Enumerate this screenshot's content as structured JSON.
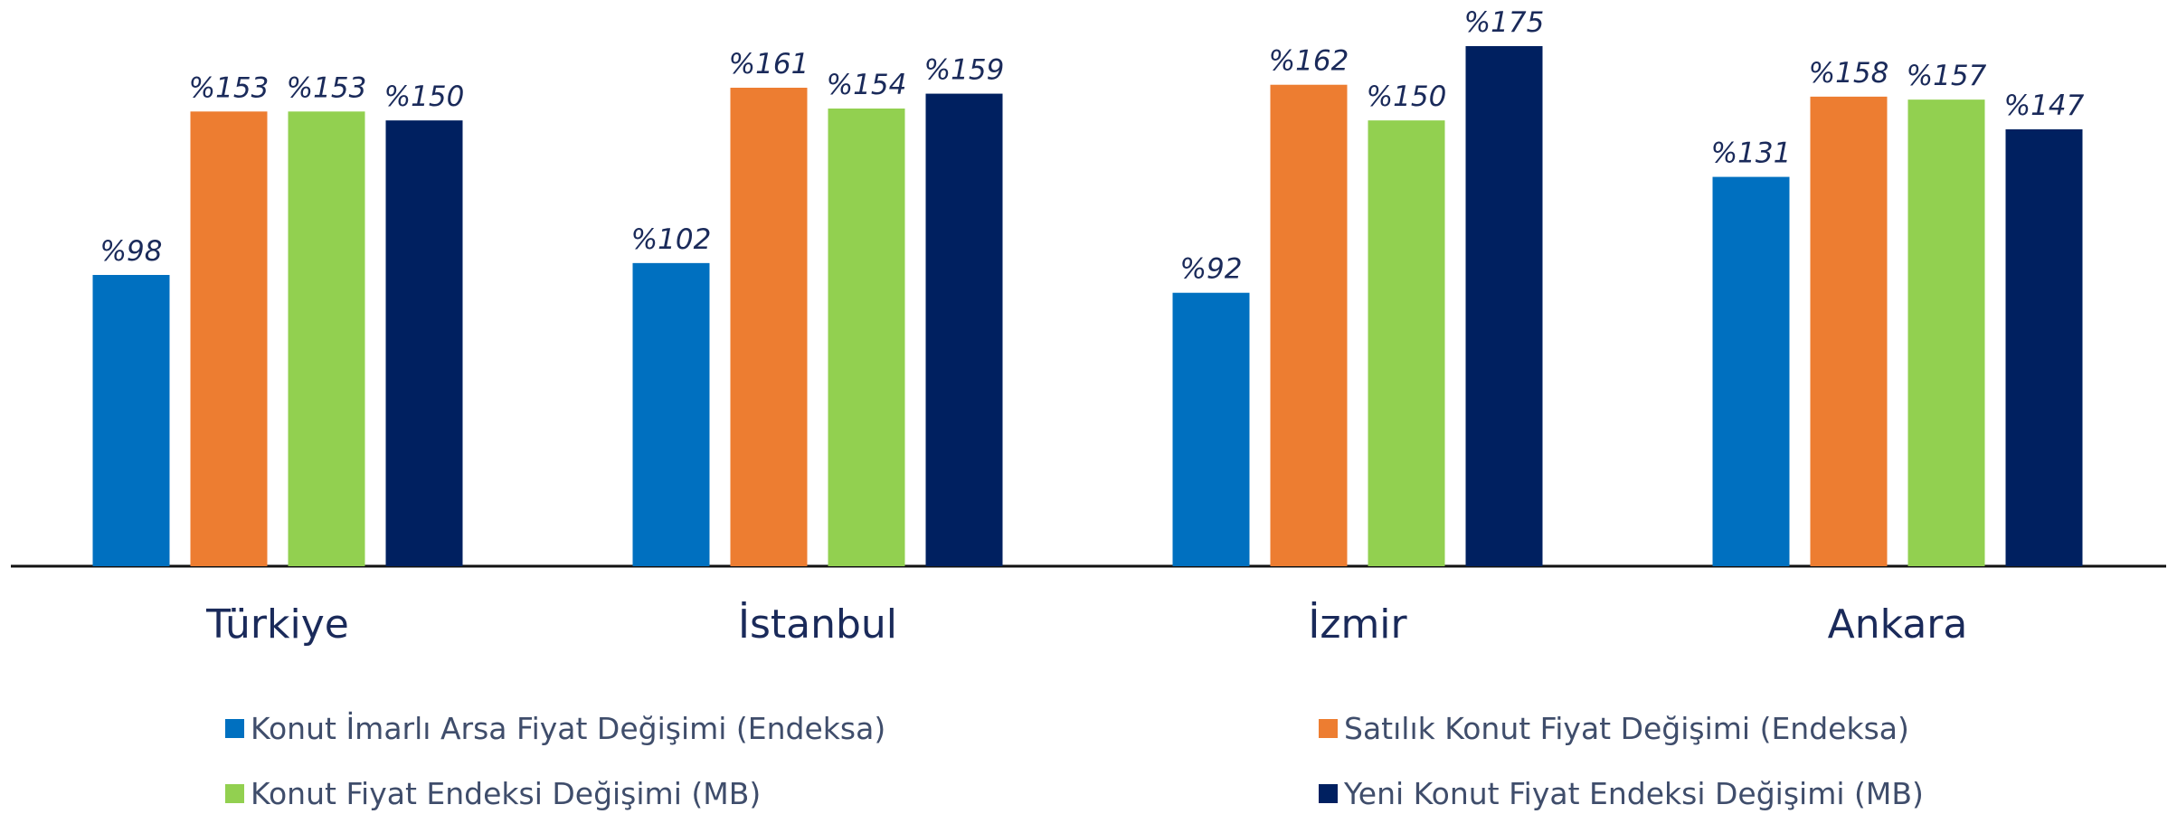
{
  "chart_data": {
    "type": "bar",
    "categories": [
      "Türkiye",
      "İstanbul",
      "İzmir",
      "Ankara"
    ],
    "series": [
      {
        "name": "Konut İmarlı Arsa Fiyat Değişimi (Endeksa)",
        "color": "#0070c0",
        "values": [
          98,
          102,
          92,
          131
        ],
        "value_labels": [
          "%98",
          "%102",
          "%92",
          "%131"
        ]
      },
      {
        "name": "Satılık Konut Fiyat Değişimi (Endeksa)",
        "color": "#ed7d31",
        "values": [
          153,
          161,
          162,
          158
        ],
        "value_labels": [
          "%153",
          "%161",
          "%162",
          "%158"
        ]
      },
      {
        "name": "Konut Fiyat Endeksi Değişimi (MB)",
        "color": "#92d050",
        "values": [
          153,
          154,
          150,
          157
        ],
        "value_labels": [
          "%153",
          "%154",
          "%150",
          "%157"
        ]
      },
      {
        "name": "Yeni Konut Fiyat Endeksi Değişimi (MB)",
        "color": "#002060",
        "values": [
          150,
          159,
          175,
          147
        ],
        "value_labels": [
          "%150",
          "%159",
          "%175",
          "%147"
        ]
      }
    ]
  }
}
